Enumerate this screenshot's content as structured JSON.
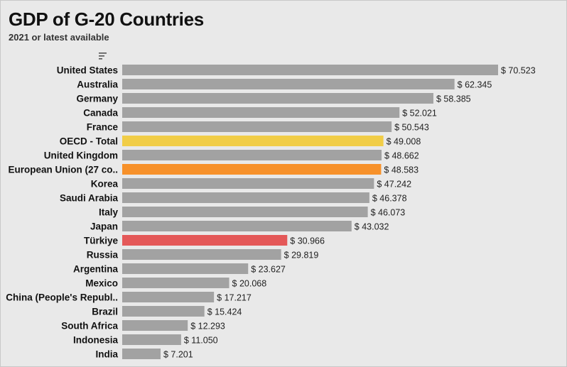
{
  "header": {
    "title": "GDP of G-20 Countries",
    "subtitle": "2021 or latest available"
  },
  "icons": {
    "sort": "sort-descending-icon"
  },
  "chart_data": {
    "type": "bar",
    "orientation": "horizontal",
    "title": "GDP of G-20 Countries",
    "subtitle": "2021 or latest available",
    "value_prefix": "$ ",
    "categories": [
      "United States",
      "Australia",
      "Germany",
      "Canada",
      "France",
      "OECD - Total",
      "United Kingdom",
      "European Union (27 co..",
      "Korea",
      "Saudi Arabia",
      "Italy",
      "Japan",
      "Türkiye",
      "Russia",
      "Argentina",
      "Mexico",
      "China (People's Republ..",
      "Brazil",
      "South Africa",
      "Indonesia",
      "India"
    ],
    "values": [
      70.523,
      62.345,
      58.385,
      52.021,
      50.543,
      49.008,
      48.662,
      48.583,
      47.242,
      46.378,
      46.073,
      43.032,
      30.966,
      29.819,
      23.627,
      20.068,
      17.217,
      15.424,
      12.293,
      11.05,
      7.201
    ],
    "value_labels": [
      "$ 70.523",
      "$ 62.345",
      "$ 58.385",
      "$ 52.021",
      "$ 50.543",
      "$ 49.008",
      "$ 48.662",
      "$ 48.583",
      "$ 47.242",
      "$ 46.378",
      "$ 46.073",
      "$ 43.032",
      "$ 30.966",
      "$ 29.819",
      "$ 23.627",
      "$ 20.068",
      "$ 17.217",
      "$ 15.424",
      "$ 12.293",
      "$ 11.050",
      "$ 7.201"
    ],
    "colors": {
      "default": "#a2a2a2",
      "OECD - Total": "#f1cd47",
      "European Union (27 co..": "#f7912a",
      "Türkiye": "#e45858"
    },
    "xlim": [
      0,
      70.523
    ],
    "grid": false,
    "legend": "none"
  }
}
